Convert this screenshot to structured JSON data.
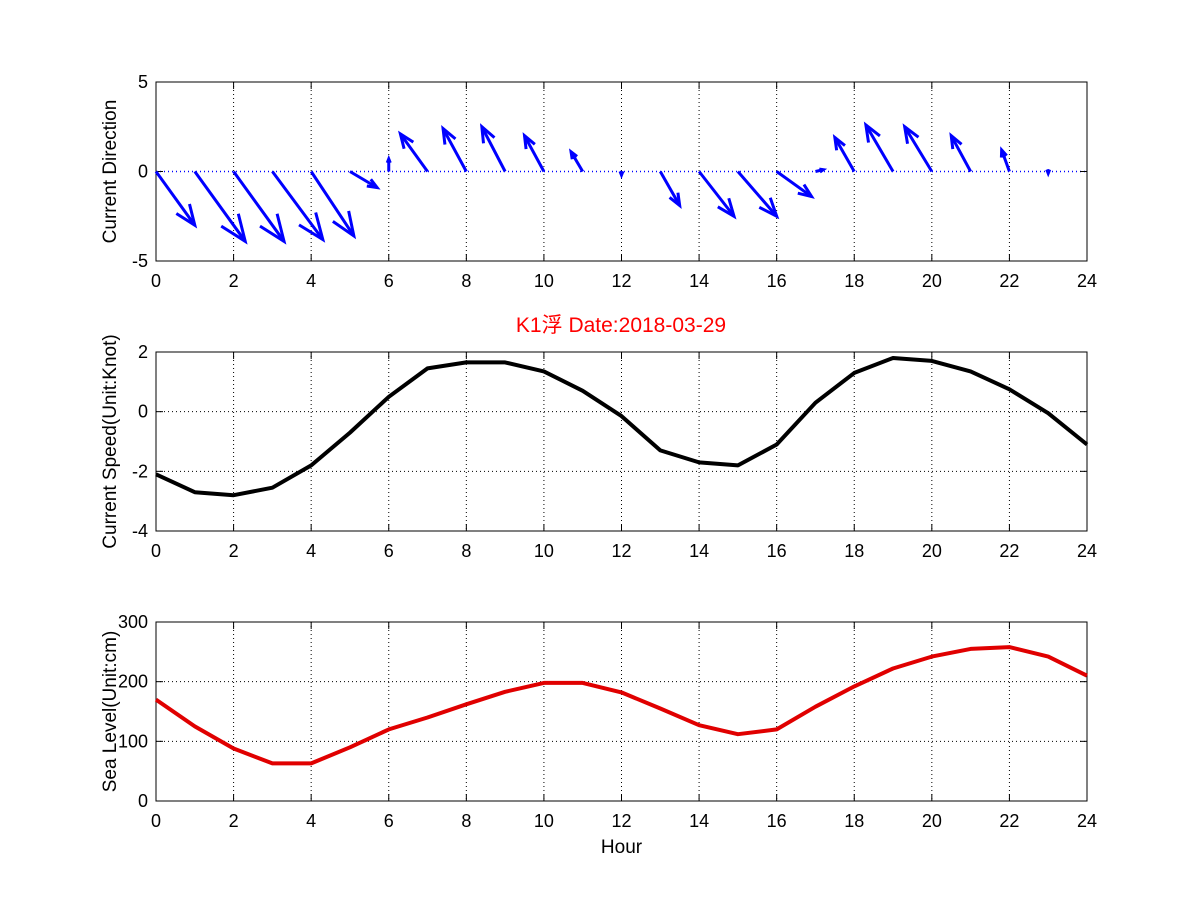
{
  "figure": {
    "title": "K1浮   Date:2018-03-29",
    "title_color": "#ff0000",
    "background": "#ffffff"
  },
  "chart_data": [
    {
      "type": "quiver",
      "name": "current-direction",
      "title": "",
      "xlabel": "",
      "ylabel": "Current Direction",
      "xlim": [
        0,
        24
      ],
      "ylim": [
        -5,
        5
      ],
      "xticks": [
        0,
        2,
        4,
        6,
        8,
        10,
        12,
        14,
        16,
        18,
        20,
        22,
        24
      ],
      "yticks": [
        -5,
        0,
        5
      ],
      "grid": true,
      "color": "#0000ff",
      "baseline_y": 0,
      "x": [
        0,
        1,
        2,
        3,
        4,
        5,
        6,
        7,
        8,
        9,
        10,
        11,
        12,
        13,
        14,
        15,
        16,
        17,
        18,
        19,
        20,
        21,
        22,
        23,
        24
      ],
      "u": [
        1.0,
        1.3,
        1.3,
        1.3,
        1.1,
        0.7,
        0.0,
        -0.7,
        -0.6,
        -0.6,
        -0.5,
        -0.3,
        0.0,
        0.5,
        0.9,
        1.0,
        0.9,
        0.2,
        -0.5,
        -0.7,
        -0.7,
        -0.5,
        -0.2,
        0.0,
        0.0
      ],
      "v": [
        -3.0,
        -3.9,
        -3.9,
        -3.8,
        -3.6,
        -0.9,
        0.7,
        2.1,
        2.4,
        2.5,
        2.0,
        1.1,
        -0.2,
        -1.9,
        -2.5,
        -2.5,
        -1.4,
        0.1,
        1.9,
        2.6,
        2.5,
        2.0,
        1.2,
        -0.1,
        0.0
      ]
    },
    {
      "type": "line",
      "name": "current-speed",
      "title": "",
      "xlabel": "",
      "ylabel": "Current Speed(Unit:Knot)",
      "xlim": [
        0,
        24
      ],
      "ylim": [
        -4,
        2
      ],
      "xticks": [
        0,
        2,
        4,
        6,
        8,
        10,
        12,
        14,
        16,
        18,
        20,
        22,
        24
      ],
      "yticks": [
        -4,
        -2,
        0,
        2
      ],
      "grid": true,
      "color": "#000000",
      "x": [
        0,
        1,
        2,
        3,
        4,
        5,
        6,
        7,
        8,
        9,
        10,
        11,
        12,
        13,
        14,
        15,
        16,
        17,
        18,
        19,
        20,
        21,
        22,
        23,
        24
      ],
      "values": [
        -2.1,
        -2.7,
        -2.8,
        -2.55,
        -1.8,
        -0.7,
        0.5,
        1.45,
        1.65,
        1.65,
        1.35,
        0.7,
        -0.15,
        -1.3,
        -1.7,
        -1.8,
        -1.1,
        0.3,
        1.3,
        1.8,
        1.7,
        1.35,
        0.75,
        -0.05,
        -1.1
      ]
    },
    {
      "type": "line",
      "name": "sea-level",
      "title": "",
      "xlabel": "Hour",
      "ylabel": "Sea Level(Unit:cm)",
      "xlim": [
        0,
        24
      ],
      "ylim": [
        0,
        300
      ],
      "xticks": [
        0,
        2,
        4,
        6,
        8,
        10,
        12,
        14,
        16,
        18,
        20,
        22,
        24
      ],
      "yticks": [
        0,
        100,
        200,
        300
      ],
      "grid": true,
      "color": "#e00000",
      "x": [
        0,
        1,
        2,
        3,
        4,
        5,
        6,
        7,
        8,
        9,
        10,
        11,
        12,
        13,
        14,
        15,
        16,
        17,
        18,
        19,
        20,
        21,
        22,
        23,
        24
      ],
      "values": [
        170,
        125,
        88,
        63,
        63,
        90,
        120,
        140,
        162,
        183,
        198,
        198,
        182,
        155,
        127,
        112,
        120,
        158,
        192,
        222,
        242,
        255,
        258,
        242,
        210
      ]
    }
  ]
}
